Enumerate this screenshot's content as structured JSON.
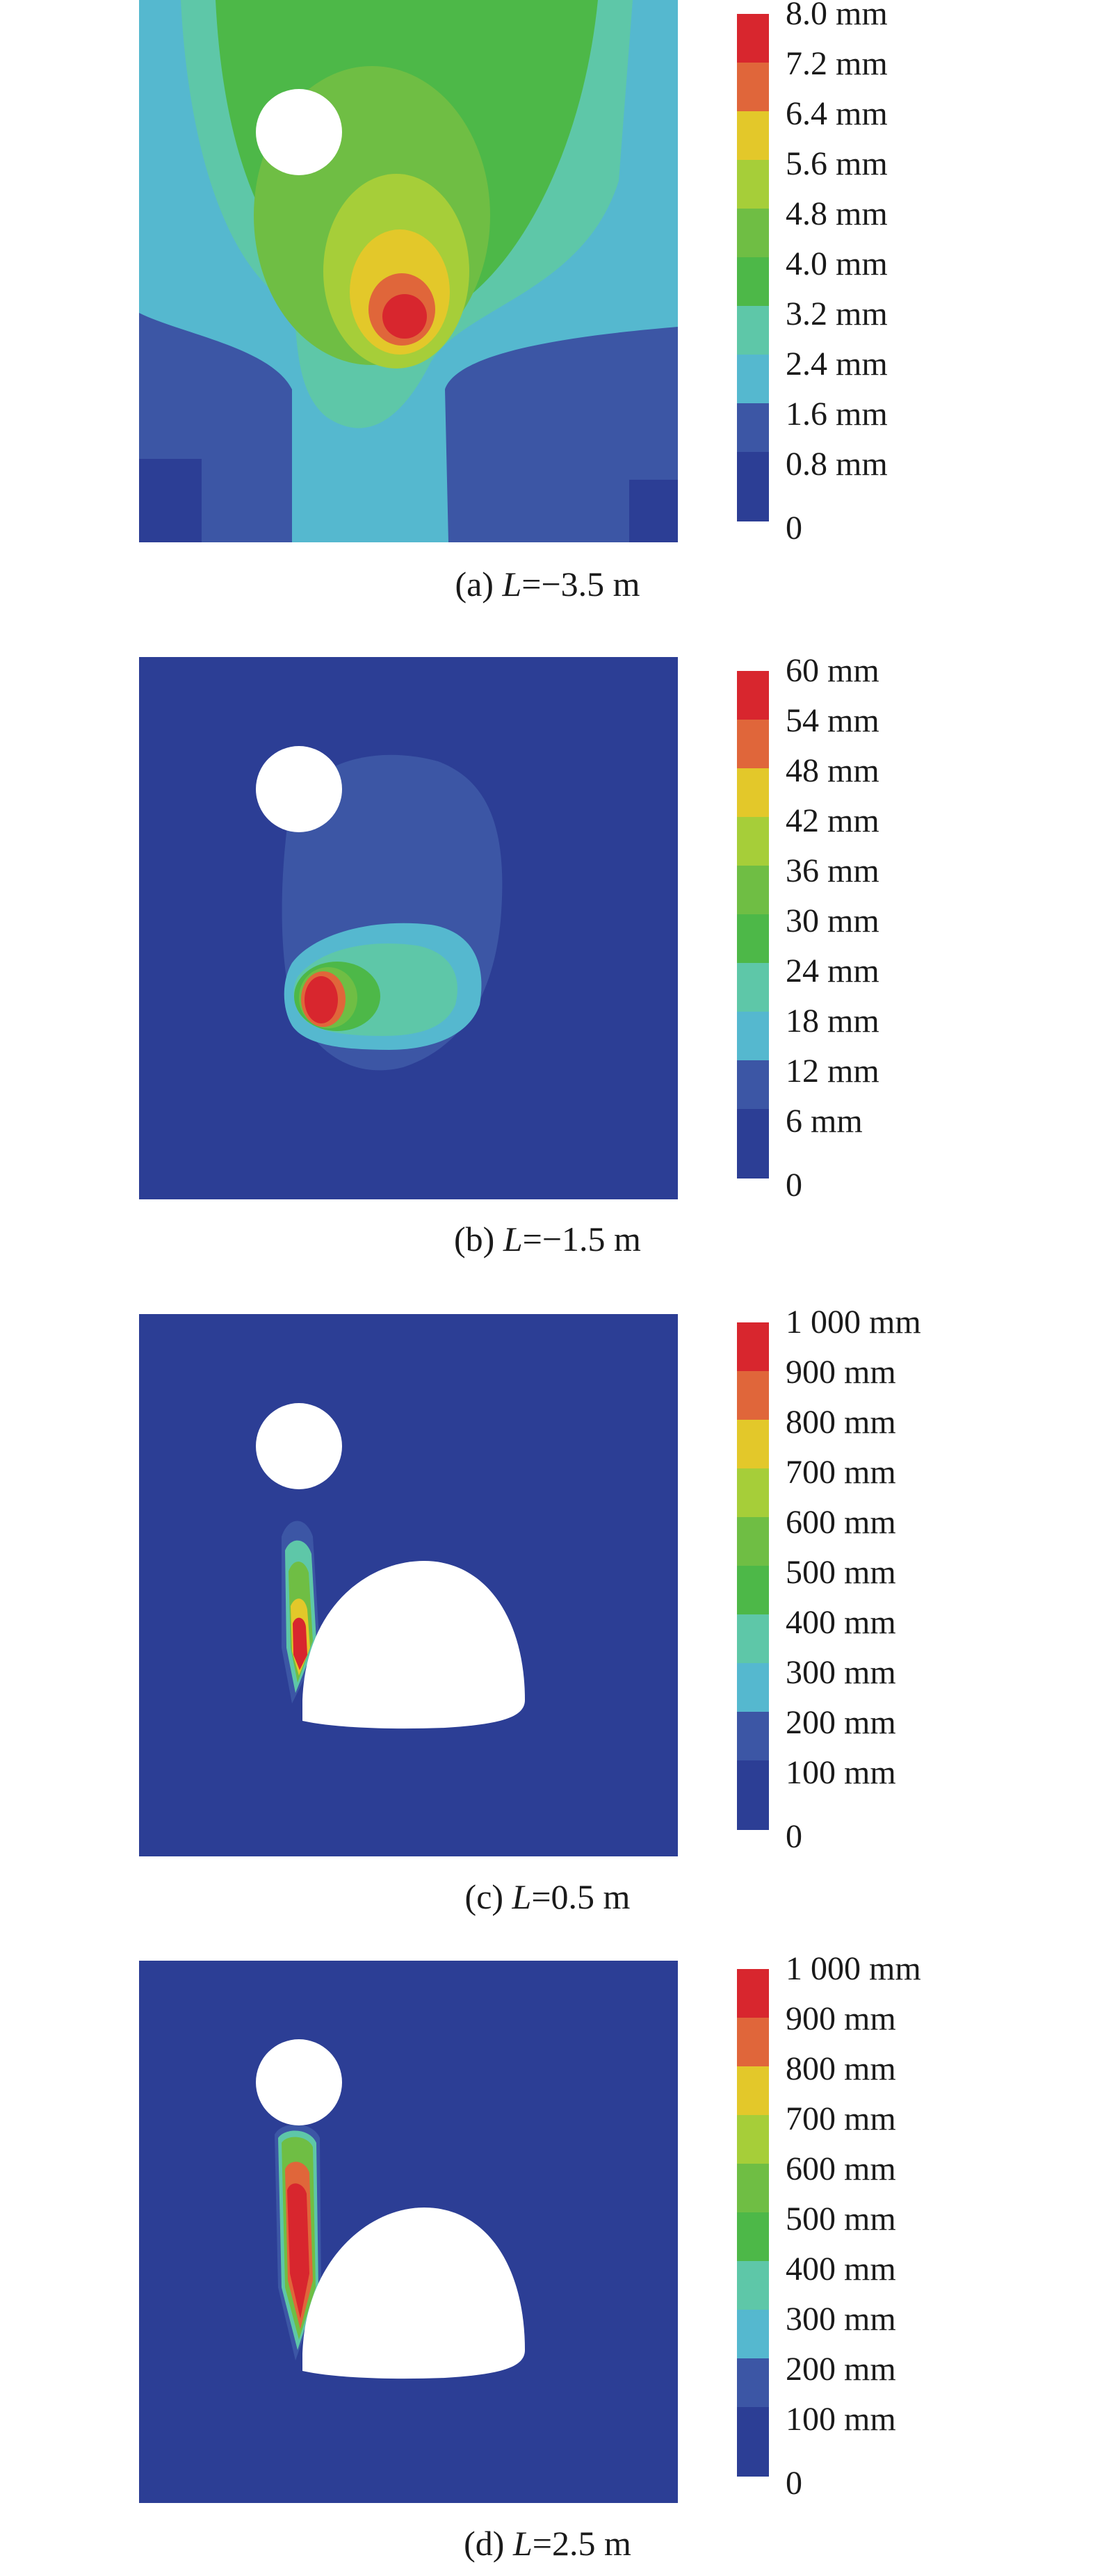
{
  "colors": {
    "level_0": "#2c3e95",
    "level_1": "#3c56a5",
    "level_2": "#55b8cf",
    "level_3": "#5ec7a8",
    "level_4": "#4db848",
    "level_5": "#6fbe44",
    "level_6": "#a6ce39",
    "level_7": "#e3c82a",
    "level_8": "#e0663a",
    "level_9": "#d8262e",
    "void": "#ffffff"
  },
  "panels": [
    {
      "caption_prefix": "(a) ",
      "caption_var": "L",
      "caption_value": "=−3.5 m",
      "legend": [
        "8.0 mm",
        "7.2 mm",
        "6.4 mm",
        "5.6 mm",
        "4.8 mm",
        "4.0 mm",
        "3.2 mm",
        "2.4 mm",
        "1.6 mm",
        "0.8 mm",
        "0"
      ]
    },
    {
      "caption_prefix": "(b) ",
      "caption_var": "L",
      "caption_value": "=−1.5 m",
      "legend": [
        "60 mm",
        "54 mm",
        "48 mm",
        "42 mm",
        "36 mm",
        "30 mm",
        "24 mm",
        "18 mm",
        "12 mm",
        "6 mm",
        "0"
      ]
    },
    {
      "caption_prefix": "(c) ",
      "caption_var": "L",
      "caption_value": "=0.5 m",
      "legend": [
        "1 000 mm",
        "900 mm",
        "800 mm",
        "700 mm",
        "600 mm",
        "500 mm",
        "400 mm",
        "300 mm",
        "200 mm",
        "100 mm",
        "0"
      ]
    },
    {
      "caption_prefix": "(d) ",
      "caption_var": "L",
      "caption_value": "=2.5 m",
      "legend": [
        "1 000 mm",
        "900 mm",
        "800 mm",
        "700 mm",
        "600 mm",
        "500 mm",
        "400 mm",
        "300 mm",
        "200 mm",
        "100 mm",
        "0"
      ]
    }
  ]
}
